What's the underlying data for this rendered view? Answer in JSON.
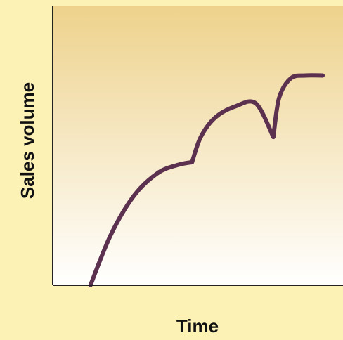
{
  "chart_data": {
    "type": "line",
    "title": "",
    "xlabel": "Time",
    "ylabel": "Sales volume",
    "x_ticks": [],
    "y_ticks": [],
    "grid": false,
    "legend": "none",
    "xlim": [
      0,
      10
    ],
    "ylim": [
      0,
      10
    ],
    "series": [
      {
        "segments": [
          {
            "x": [
              1.3,
              2.0,
              2.8,
              3.6,
              4.3,
              4.8
            ],
            "y": [
              0.0,
              1.8,
              3.2,
              4.0,
              4.3,
              4.4
            ]
          },
          {
            "x": [
              4.8,
              5.1,
              5.6,
              6.3,
              7.0,
              7.6
            ],
            "y": [
              4.4,
              5.3,
              6.0,
              6.4,
              6.5,
              5.3
            ]
          },
          {
            "x": [
              7.6,
              7.8,
              8.2,
              8.7,
              9.3
            ],
            "y": [
              5.3,
              6.7,
              7.4,
              7.5,
              7.5
            ]
          }
        ]
      }
    ],
    "colors": {
      "line": "#5c3150",
      "background": "#fcf2b6",
      "plot_gradient_top": "#eed28c",
      "plot_gradient_bottom": "#ffffff",
      "axis": "#222222"
    }
  }
}
